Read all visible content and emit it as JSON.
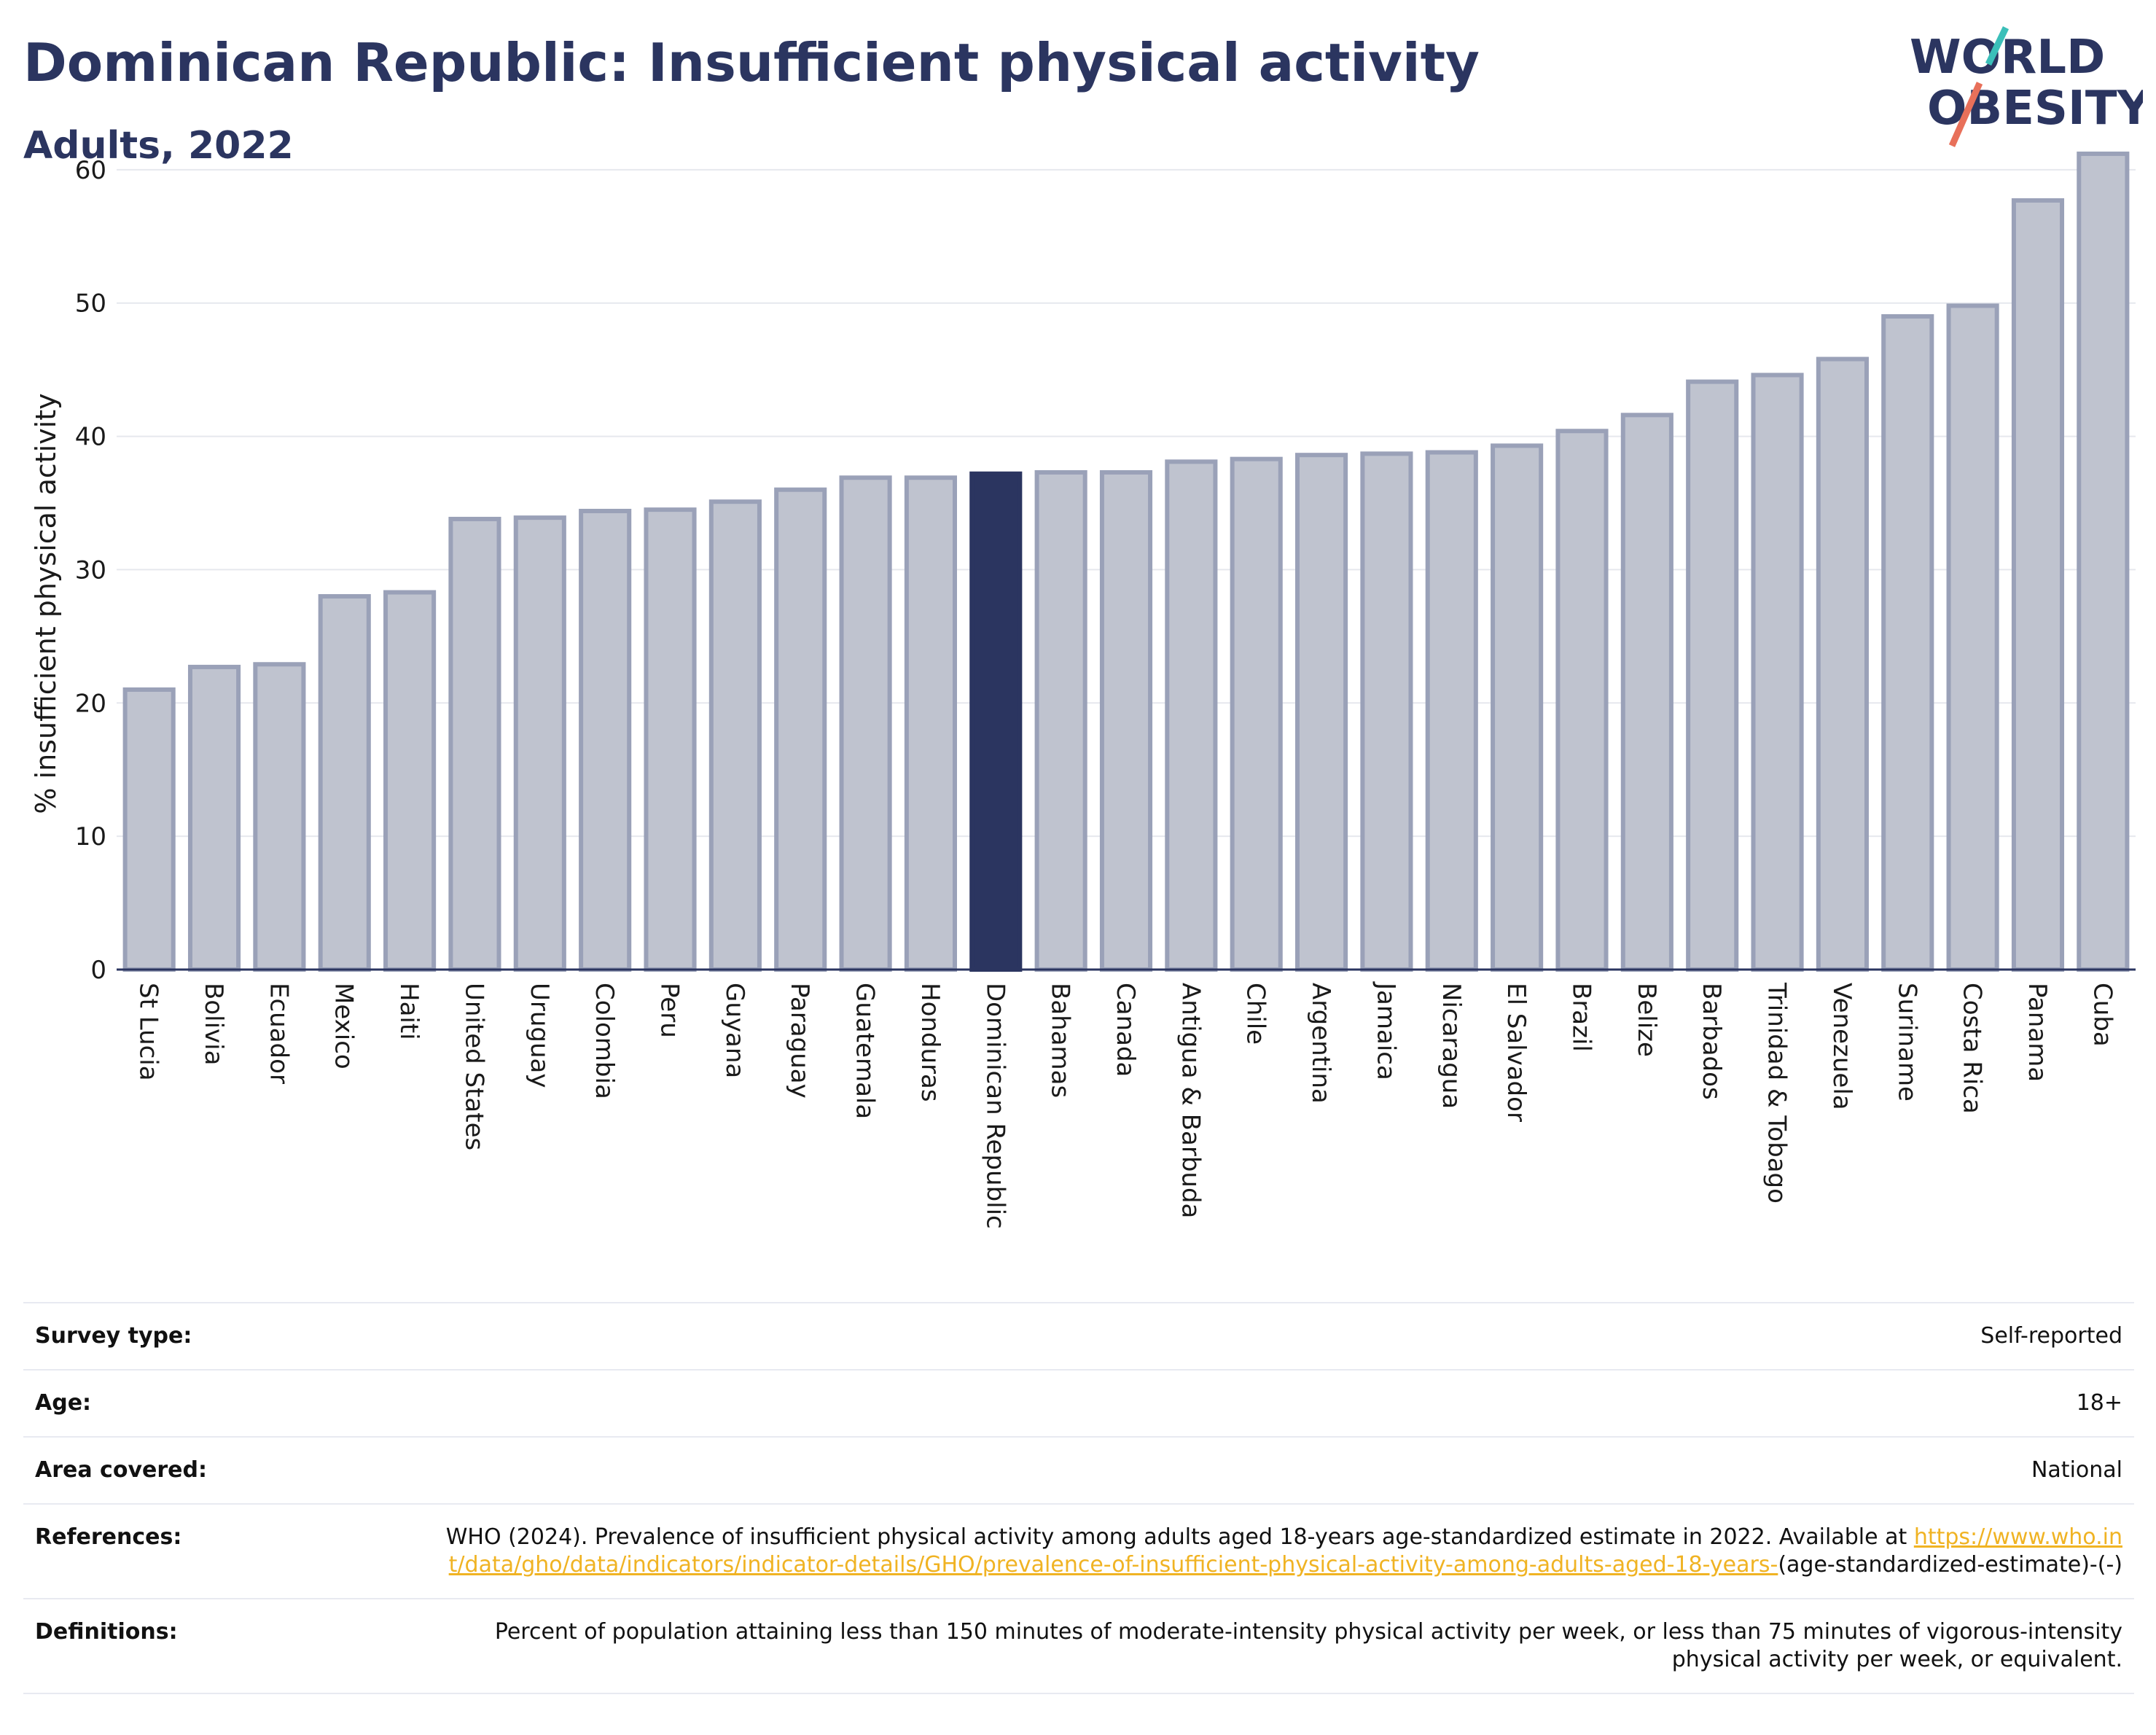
{
  "header": {
    "title": "Dominican Republic: Insufficient physical activity",
    "subtitle": "Adults, 2022"
  },
  "logo": {
    "line1": "WORLD",
    "line2": "OBESITY"
  },
  "colors": {
    "bar_default": "#bfc3cf",
    "bar_border": "#9aa1b8",
    "bar_highlight": "#2b3560",
    "axis_text": "#1a1a1a",
    "grid": "#e6e8ee",
    "logo_teal": "#3bbfb9",
    "logo_coral": "#e8705a",
    "link": "#f0b323"
  },
  "chart_data": {
    "type": "bar",
    "ylabel": "% insufficient physical activity",
    "ylim": [
      0,
      63
    ],
    "yticks": [
      0,
      10,
      20,
      30,
      40,
      50,
      60
    ],
    "grid": true,
    "highlight": "Dominican Republic",
    "categories": [
      "St Lucia",
      "Bolivia",
      "Ecuador",
      "Mexico",
      "Haiti",
      "United States",
      "Uruguay",
      "Colombia",
      "Peru",
      "Guyana",
      "Paraguay",
      "Guatemala",
      "Honduras",
      "Dominican Republic",
      "Bahamas",
      "Canada",
      "Antigua & Barbuda",
      "Chile",
      "Argentina",
      "Jamaica",
      "Nicaragua",
      "El Salvador",
      "Brazil",
      "Belize",
      "Barbados",
      "Trinidad & Tobago",
      "Venezuela",
      "Suriname",
      "Costa Rica",
      "Panama",
      "Cuba"
    ],
    "values": [
      21.0,
      22.7,
      22.9,
      28.0,
      28.3,
      33.8,
      33.9,
      34.4,
      34.5,
      35.1,
      36.0,
      36.9,
      36.9,
      37.2,
      37.3,
      37.3,
      38.1,
      38.3,
      38.6,
      38.7,
      38.8,
      39.3,
      40.4,
      41.6,
      44.1,
      44.6,
      45.8,
      49.0,
      49.8,
      57.7,
      61.2
    ]
  },
  "info": {
    "rows": [
      {
        "label": "Survey type:",
        "value": "Self-reported"
      },
      {
        "label": "Age:",
        "value": "18+"
      },
      {
        "label": "Area covered:",
        "value": "National"
      }
    ],
    "references": {
      "label": "References:",
      "text": "WHO (2024). Prevalence of insufficient physical activity among adults aged 18-years age-standardized estimate in 2022. Available at",
      "link": "https://www.who.int/data/gho/data/indicators/indicator-details/GHO/prevalence-of-insufficient-physical-activity-among-adults-aged-18-years-",
      "suffix": "(age-standardized-estimate)-(-)"
    },
    "definitions": {
      "label": "Definitions:",
      "text": "Percent of population attaining less than 150 minutes of moderate-intensity physical activity per week, or less than 75 minutes of vigorous-intensity physical activity per week, or equivalent."
    }
  }
}
